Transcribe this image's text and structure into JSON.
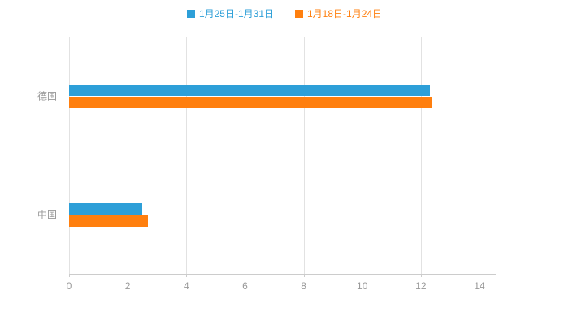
{
  "chart_data": {
    "type": "bar",
    "orientation": "horizontal",
    "title": "",
    "xlabel": "",
    "ylabel": "",
    "categories": [
      "德国",
      "中国"
    ],
    "series": [
      {
        "name": "1月25日-1月31日",
        "color": "#2D9FD8",
        "values": [
          12.3,
          2.5
        ]
      },
      {
        "name": "1月18日-1月24日",
        "color": "#FF7F0E",
        "values": [
          12.4,
          2.7
        ]
      }
    ],
    "xlim": [
      0,
      14
    ],
    "xticks": [
      0,
      2,
      4,
      6,
      8,
      10,
      12,
      14
    ],
    "grid": true,
    "legend_position": "top",
    "background_color": "#ffffff",
    "axis_text_color": "#999999",
    "gridline_color": "#e2e2e2",
    "axis_line_color": "#cccccc"
  }
}
